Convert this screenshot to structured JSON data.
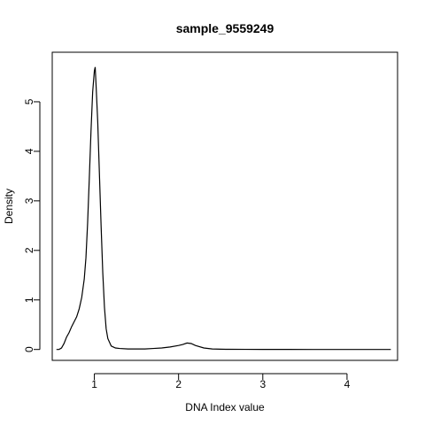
{
  "chart_data": {
    "type": "line",
    "title": "sample_9559249",
    "xlabel": "DNA Index value",
    "ylabel": "Density",
    "xlim": [
      0.5,
      4.6
    ],
    "ylim": [
      -0.22,
      6.0
    ],
    "x_ticks": [
      1,
      2,
      3,
      4
    ],
    "x_tick_labels": [
      "1",
      "2",
      "3",
      "4"
    ],
    "y_ticks": [
      0,
      1,
      2,
      3,
      4,
      5
    ],
    "y_tick_labels": [
      "0",
      "1",
      "2",
      "3",
      "4",
      "5"
    ],
    "grid": false,
    "series": [
      {
        "line_color": "#000000",
        "x": [
          0.55,
          0.58,
          0.61,
          0.64,
          0.67,
          0.7,
          0.73,
          0.76,
          0.79,
          0.82,
          0.85,
          0.88,
          0.9,
          0.92,
          0.94,
          0.96,
          0.98,
          1.0,
          1.01,
          1.02,
          1.04,
          1.06,
          1.08,
          1.1,
          1.12,
          1.14,
          1.16,
          1.2,
          1.25,
          1.3,
          1.4,
          1.5,
          1.6,
          1.7,
          1.8,
          1.9,
          2.0,
          2.05,
          2.1,
          2.15,
          2.2,
          2.3,
          2.4,
          2.5,
          2.6,
          2.8,
          3.0,
          3.3,
          3.6,
          4.0,
          4.3,
          4.52
        ],
        "y": [
          0.0,
          0.0,
          0.03,
          0.12,
          0.25,
          0.34,
          0.46,
          0.56,
          0.66,
          0.82,
          1.05,
          1.42,
          1.85,
          2.55,
          3.45,
          4.4,
          5.2,
          5.62,
          5.7,
          5.35,
          4.6,
          3.55,
          2.5,
          1.55,
          0.85,
          0.42,
          0.22,
          0.07,
          0.03,
          0.02,
          0.01,
          0.01,
          0.01,
          0.02,
          0.03,
          0.05,
          0.08,
          0.1,
          0.13,
          0.12,
          0.08,
          0.03,
          0.01,
          0.005,
          0.003,
          0.002,
          0.001,
          0.001,
          0.0,
          0.0,
          0.0,
          0.0
        ]
      }
    ]
  }
}
